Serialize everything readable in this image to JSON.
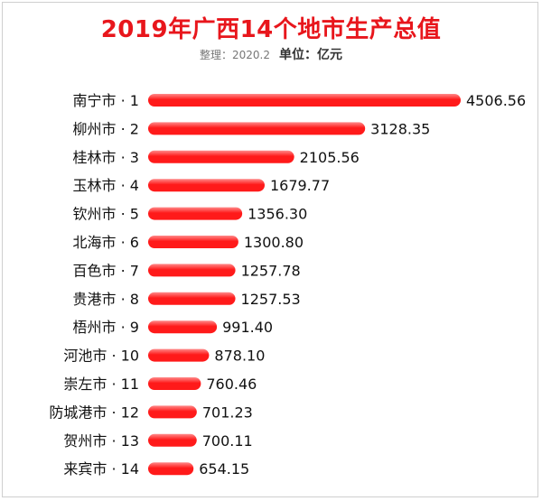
{
  "title": "2019年广西14个地市生产总值",
  "source": "整理：2020.2",
  "unit": "单位：亿元",
  "colors": {
    "bar": "#ff1a1a",
    "bar_highlight": "#ff8a8a"
  },
  "chart_data": {
    "type": "bar",
    "orientation": "horizontal",
    "title": "2019年广西14个地市生产总值",
    "xlabel": "",
    "ylabel": "",
    "categories": [
      "南宁市 · 1",
      "柳州市 · 2",
      "桂林市 · 3",
      "玉林市 · 4",
      "钦州市 · 5",
      "北海市 · 6",
      "百色市 · 7",
      "贵港市 · 8",
      "梧州市 · 9",
      "河池市 · 10",
      "崇左市 · 11",
      "防城港市 · 12",
      "贺州市 · 13",
      "来宾市 · 14"
    ],
    "values": [
      4506.56,
      3128.35,
      2105.56,
      1679.77,
      1356.3,
      1300.8,
      1257.78,
      1257.53,
      991.4,
      878.1,
      760.46,
      701.23,
      700.11,
      654.15
    ],
    "value_labels": [
      "4506.56",
      "3128.35",
      "2105.56",
      "1679.77",
      "1356.30",
      "1300.80",
      "1257.78",
      "1257.53",
      "991.40",
      "878.10",
      "760.46",
      "701.23",
      "700.11",
      "654.15"
    ],
    "xlim": [
      0,
      4506.56
    ],
    "grid": false,
    "legend": "none"
  }
}
